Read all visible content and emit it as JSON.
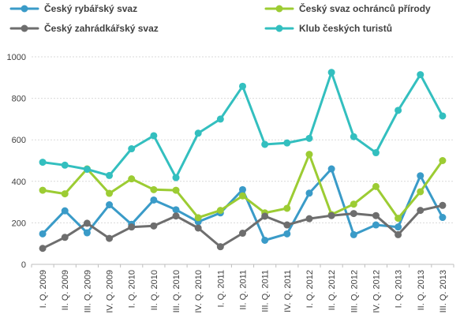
{
  "chart_data": {
    "type": "line",
    "categories": [
      "I. Q. 2009",
      "II. Q. 2009",
      "III. Q. 2009",
      "IV. Q. 2009",
      "I. Q. 2010",
      "II. Q. 2010",
      "III. Q. 2010",
      "IV. Q. 2010",
      "I. Q. 2011",
      "II. Q. 2011",
      "III. Q. 2011",
      "IV. Q. 2011",
      "I. Q. 2012",
      "II. Q. 2012",
      "III. Q. 2012",
      "IV. Q. 2012",
      "I. Q. 2013",
      "II. Q. 2013",
      "III. Q. 2013"
    ],
    "series": [
      {
        "name": "Český rybářský svaz",
        "color": "#3a9bc8",
        "values": [
          147,
          258,
          152,
          287,
          193,
          310,
          263,
          205,
          248,
          360,
          116,
          147,
          343,
          460,
          143,
          190,
          180,
          427,
          226
        ]
      },
      {
        "name": "Český svaz ochránců přírody",
        "color": "#9ccc33",
        "values": [
          357,
          340,
          460,
          342,
          412,
          360,
          357,
          225,
          260,
          330,
          248,
          270,
          530,
          240,
          290,
          375,
          222,
          350,
          500
        ]
      },
      {
        "name": "Český zahrádkářský svaz",
        "color": "#6e6e6e",
        "values": [
          77,
          130,
          198,
          125,
          180,
          185,
          233,
          175,
          85,
          150,
          232,
          190,
          220,
          235,
          245,
          235,
          143,
          260,
          284
        ]
      },
      {
        "name": "Klub českých turistů",
        "color": "#33bfbf",
        "values": [
          492,
          478,
          458,
          428,
          557,
          620,
          418,
          632,
          700,
          858,
          578,
          585,
          607,
          925,
          615,
          538,
          742,
          914,
          715
        ]
      }
    ],
    "ylim": [
      0,
      1000
    ],
    "yticks": [
      0,
      200,
      400,
      600,
      800,
      1000
    ],
    "grid": true,
    "legend_position": "top"
  }
}
